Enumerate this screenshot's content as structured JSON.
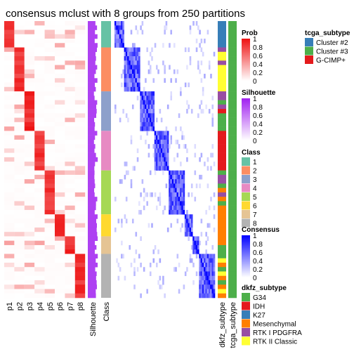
{
  "chart_data": {
    "type": "heatmap",
    "title": "consensus mclust with 8 groups from 250 partitions",
    "probability_columns": [
      "p1",
      "p2",
      "p3",
      "p4",
      "p5",
      "p6",
      "p7",
      "p8"
    ],
    "annotation_columns": [
      "Silhouette",
      "Class"
    ],
    "consensus_label": "",
    "right_annotations": [
      "dkfz_subtype",
      "tcga_subtype"
    ],
    "class_groups": [
      {
        "class": 1,
        "count": 6
      },
      {
        "class": 2,
        "count": 10
      },
      {
        "class": 3,
        "count": 9
      },
      {
        "class": 4,
        "count": 9
      },
      {
        "class": 5,
        "count": 10
      },
      {
        "class": 6,
        "count": 5
      },
      {
        "class": 7,
        "count": 4
      },
      {
        "class": 8,
        "count": 10
      }
    ],
    "legends": {
      "prob": {
        "title": "Prob",
        "ticks": [
          "1",
          "0.8",
          "0.6",
          "0.4",
          "0.2",
          "0"
        ],
        "color_high": "#ee1111",
        "color_low": "#ffffff"
      },
      "silhouette": {
        "title": "Silhouette",
        "ticks": [
          "1",
          "0.8",
          "0.6",
          "0.4",
          "0.2",
          "0"
        ],
        "color_high": "#a020f0",
        "color_low": "#ffffff"
      },
      "class": {
        "title": "Class",
        "labels": [
          "1",
          "2",
          "3",
          "4",
          "5",
          "6",
          "7",
          "8"
        ],
        "colors": [
          "#66c2a5",
          "#fc8d62",
          "#8da0cb",
          "#e78ac3",
          "#a6d854",
          "#ffd92f",
          "#e5c494",
          "#b3b3b3"
        ]
      },
      "consensus": {
        "title": "Consensus",
        "ticks": [
          "1",
          "0.8",
          "0.6",
          "0.4",
          "0.2",
          "0"
        ],
        "color_high": "#0000ff",
        "color_low": "#ffffff"
      },
      "dkfz_subtype": {
        "title": "dkfz_subtype",
        "labels": [
          "G34",
          "IDH",
          "K27",
          "Mesenchymal",
          "RTK I PDGFRA",
          "RTK II Classic"
        ],
        "colors": [
          "#4daf4a",
          "#e41a1c",
          "#377eb8",
          "#ff7f00",
          "#984ea3",
          "#ffff33"
        ]
      },
      "tcga_subtype": {
        "title": "tcga_subtype",
        "labels": [
          "Cluster #2",
          "Cluster #3",
          "G-CIMP+"
        ],
        "colors": [
          "#377eb8",
          "#4daf4a",
          "#e41a1c"
        ]
      }
    },
    "dkfz_subtype_per_sample": [
      "K27",
      "K27",
      "K27",
      "K27",
      "K27",
      "K27",
      "RTK I PDGFRA",
      "RTK II Classic",
      "RTK II Classic",
      "RTK I PDGFRA",
      "RTK II Classic",
      "RTK II Classic",
      "RTK II Classic",
      "RTK II Classic",
      "RTK II Classic",
      "RTK II Classic",
      "RTK I PDGFRA",
      "RTK I PDGFRA",
      "G34",
      "RTK I PDGFRA",
      "IDH",
      "G34",
      "G34",
      "G34",
      "G34",
      "IDH",
      "IDH",
      "IDH",
      "IDH",
      "IDH",
      "IDH",
      "IDH",
      "IDH",
      "IDH",
      "G34",
      "RTK I PDGFRA",
      "RTK I PDGFRA",
      "G34",
      "Mesenchymal",
      "RTK I PDGFRA",
      "Mesenchymal",
      "G34",
      "Mesenchymal",
      "Mesenchymal",
      "Mesenchymal",
      "Mesenchymal",
      "Mesenchymal",
      "Mesenchymal",
      "Mesenchymal",
      "Mesenchymal",
      "Mesenchymal",
      "G34",
      "G34",
      "G34",
      "RTK II Classic",
      "Mesenchymal",
      "G34",
      "RTK II Classic",
      "Mesenchymal",
      "G34",
      "Mesenchymal",
      "RTK II Classic",
      "Mesenchymal"
    ],
    "tcga_subtype_per_sample": [
      "Cluster #3",
      "Cluster #3",
      "Cluster #3",
      "Cluster #3",
      "Cluster #3",
      "Cluster #3",
      "Cluster #3",
      "Cluster #3",
      "Cluster #3",
      "Cluster #3",
      "Cluster #3",
      "Cluster #3",
      "Cluster #3",
      "Cluster #3",
      "Cluster #3",
      "Cluster #3",
      "Cluster #3",
      "Cluster #3",
      "Cluster #3",
      "Cluster #3",
      "Cluster #3",
      "Cluster #3",
      "Cluster #3",
      "Cluster #3",
      "Cluster #3",
      "Cluster #3",
      "Cluster #3",
      "Cluster #3",
      "Cluster #3",
      "Cluster #3",
      "Cluster #3",
      "Cluster #3",
      "Cluster #3",
      "Cluster #3",
      "Cluster #3",
      "Cluster #3",
      "Cluster #3",
      "Cluster #3",
      "Cluster #3",
      "Cluster #3",
      "Cluster #3",
      "Cluster #3",
      "Cluster #3",
      "Cluster #3",
      "Cluster #3",
      "Cluster #3",
      "Cluster #3",
      "Cluster #3",
      "Cluster #3",
      "Cluster #3",
      "Cluster #3",
      "Cluster #3",
      "Cluster #3",
      "Cluster #3",
      "Cluster #3",
      "Cluster #3",
      "Cluster #3",
      "Cluster #3",
      "Cluster #3",
      "Cluster #3",
      "Cluster #3",
      "Cluster #3",
      "Cluster #3"
    ]
  }
}
